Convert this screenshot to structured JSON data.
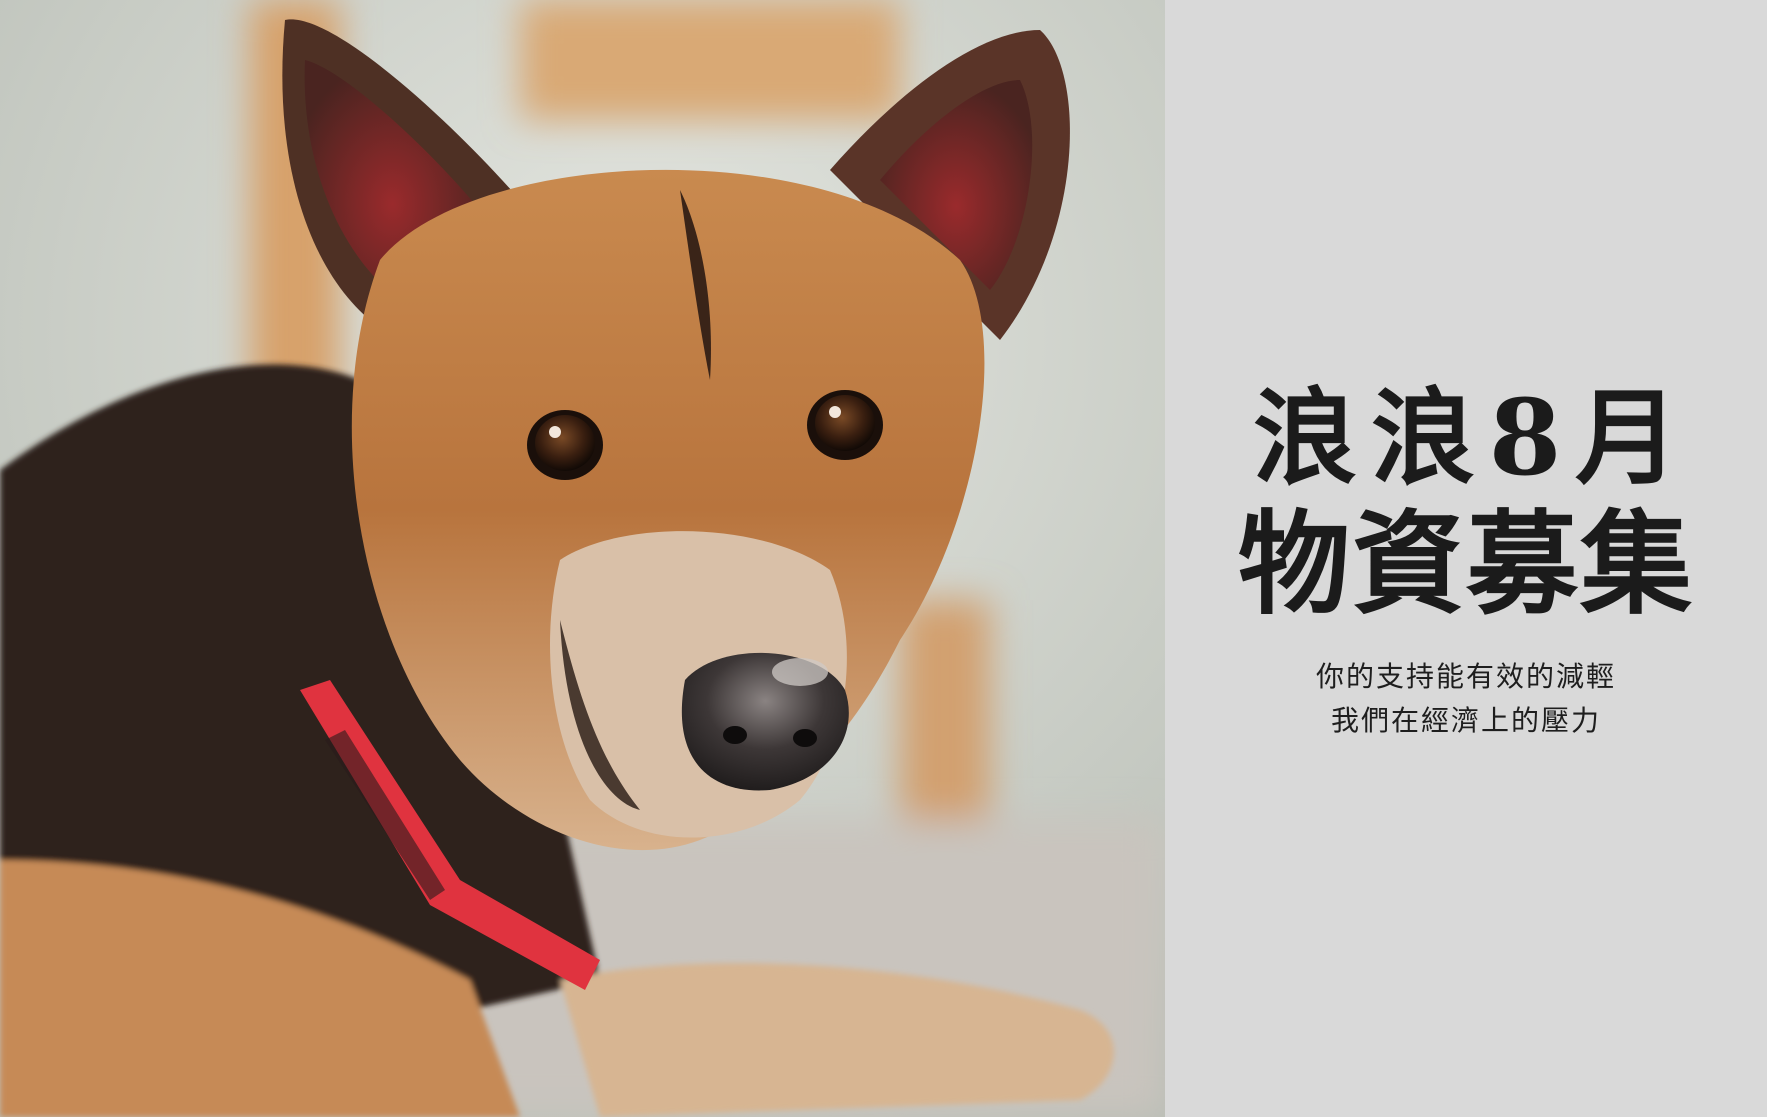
{
  "poster": {
    "headline": {
      "line1": "浪浪8月",
      "line2": "物資募集"
    },
    "subtitle": {
      "line1": "你的支持能有效的減輕",
      "line2": "我們在經濟上的壓力"
    }
  },
  "colors": {
    "text_panel_background": "#d9d9d9",
    "headline_text": "#1b1b1b",
    "collar": "#e0333f"
  }
}
